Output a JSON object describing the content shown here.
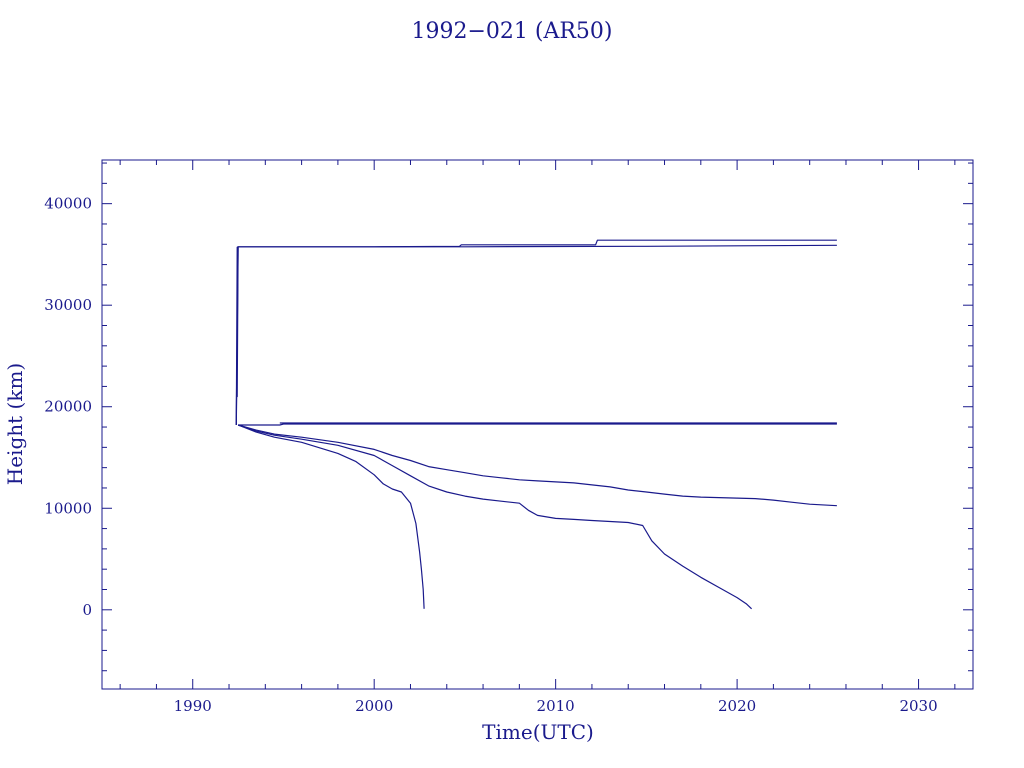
{
  "chart_data": {
    "type": "line",
    "title": "1992−021 (AR50)",
    "xlabel": "Time(UTC)",
    "ylabel": "Height (km)",
    "xlim": [
      1985,
      2033
    ],
    "ylim": [
      -7800,
      44300
    ],
    "xticks": [
      1990,
      2000,
      2010,
      2020,
      2030
    ],
    "yticks": [
      0,
      10000,
      20000,
      30000,
      40000
    ],
    "grid": false,
    "line_color": "#1a1a8c",
    "series": [
      {
        "x": [
          1992.4,
          1992.45,
          1992.5,
          1995,
          2000,
          2004.7,
          2004.8,
          2012.2,
          2012.3,
          2018,
          2025.5
        ],
        "y": [
          18200,
          35700,
          35750,
          35750,
          35750,
          35800,
          35950,
          35950,
          36400,
          36400,
          36400
        ]
      },
      {
        "x": [
          1992.4,
          1992.5,
          1995,
          2000,
          2005,
          2010,
          2015,
          2020,
          2025.5
        ],
        "y": [
          18200,
          35750,
          35750,
          35750,
          35750,
          35780,
          35800,
          35850,
          35900
        ]
      },
      {
        "x": [
          1992.4,
          1992.42,
          1992.45,
          1992.5
        ],
        "y": [
          18200,
          22000,
          21000,
          35750
        ]
      },
      {
        "x": [
          1992.5,
          1994.8,
          1995,
          2025.5
        ],
        "y": [
          18200,
          18200,
          18300,
          18300
        ]
      },
      {
        "x": [
          1994.8,
          2025.5
        ],
        "y": [
          18400,
          18400
        ]
      },
      {
        "x": [
          1992.5,
          1993.5,
          1994.5,
          1996,
          1998,
          2000,
          2001,
          2002,
          2003,
          2004,
          2005,
          2006,
          2007,
          2008,
          2009,
          2010,
          2011,
          2012,
          2013,
          2014,
          2015,
          2016,
          2017,
          2018,
          2019,
          2020,
          2021,
          2022,
          2023,
          2024,
          2025.5
        ],
        "y": [
          18200,
          17700,
          17300,
          17000,
          16500,
          15800,
          15200,
          14700,
          14100,
          13800,
          13500,
          13200,
          13000,
          12800,
          12700,
          12600,
          12500,
          12300,
          12100,
          11800,
          11600,
          11400,
          11200,
          11100,
          11050,
          11000,
          10950,
          10800,
          10600,
          10400,
          10250
        ]
      },
      {
        "x": [
          1992.5,
          1993.5,
          1994.5,
          1996,
          1998,
          2000,
          2001,
          2002,
          2003,
          2004,
          2005,
          2006,
          2007,
          2008,
          2008.5,
          2009,
          2010,
          2011,
          2012,
          2013,
          2014,
          2014.8,
          2015.3,
          2016,
          2017,
          2018,
          2019,
          2020,
          2020.5,
          2020.8
        ],
        "y": [
          18200,
          17600,
          17200,
          16800,
          16200,
          15200,
          14200,
          13200,
          12200,
          11600,
          11200,
          10900,
          10700,
          10500,
          9800,
          9300,
          9000,
          8900,
          8800,
          8700,
          8600,
          8300,
          6800,
          5500,
          4300,
          3200,
          2200,
          1200,
          600,
          100
        ]
      },
      {
        "x": [
          1992.5,
          1993.5,
          1994.5,
          1996,
          1998,
          1999,
          2000,
          2000.5,
          2001,
          2001.5,
          2002,
          2002.3,
          2002.5,
          2002.6,
          2002.7,
          2002.75
        ],
        "y": [
          18200,
          17500,
          17000,
          16500,
          15400,
          14600,
          13300,
          12400,
          11900,
          11600,
          10500,
          8500,
          5700,
          4000,
          2000,
          100
        ]
      }
    ]
  }
}
